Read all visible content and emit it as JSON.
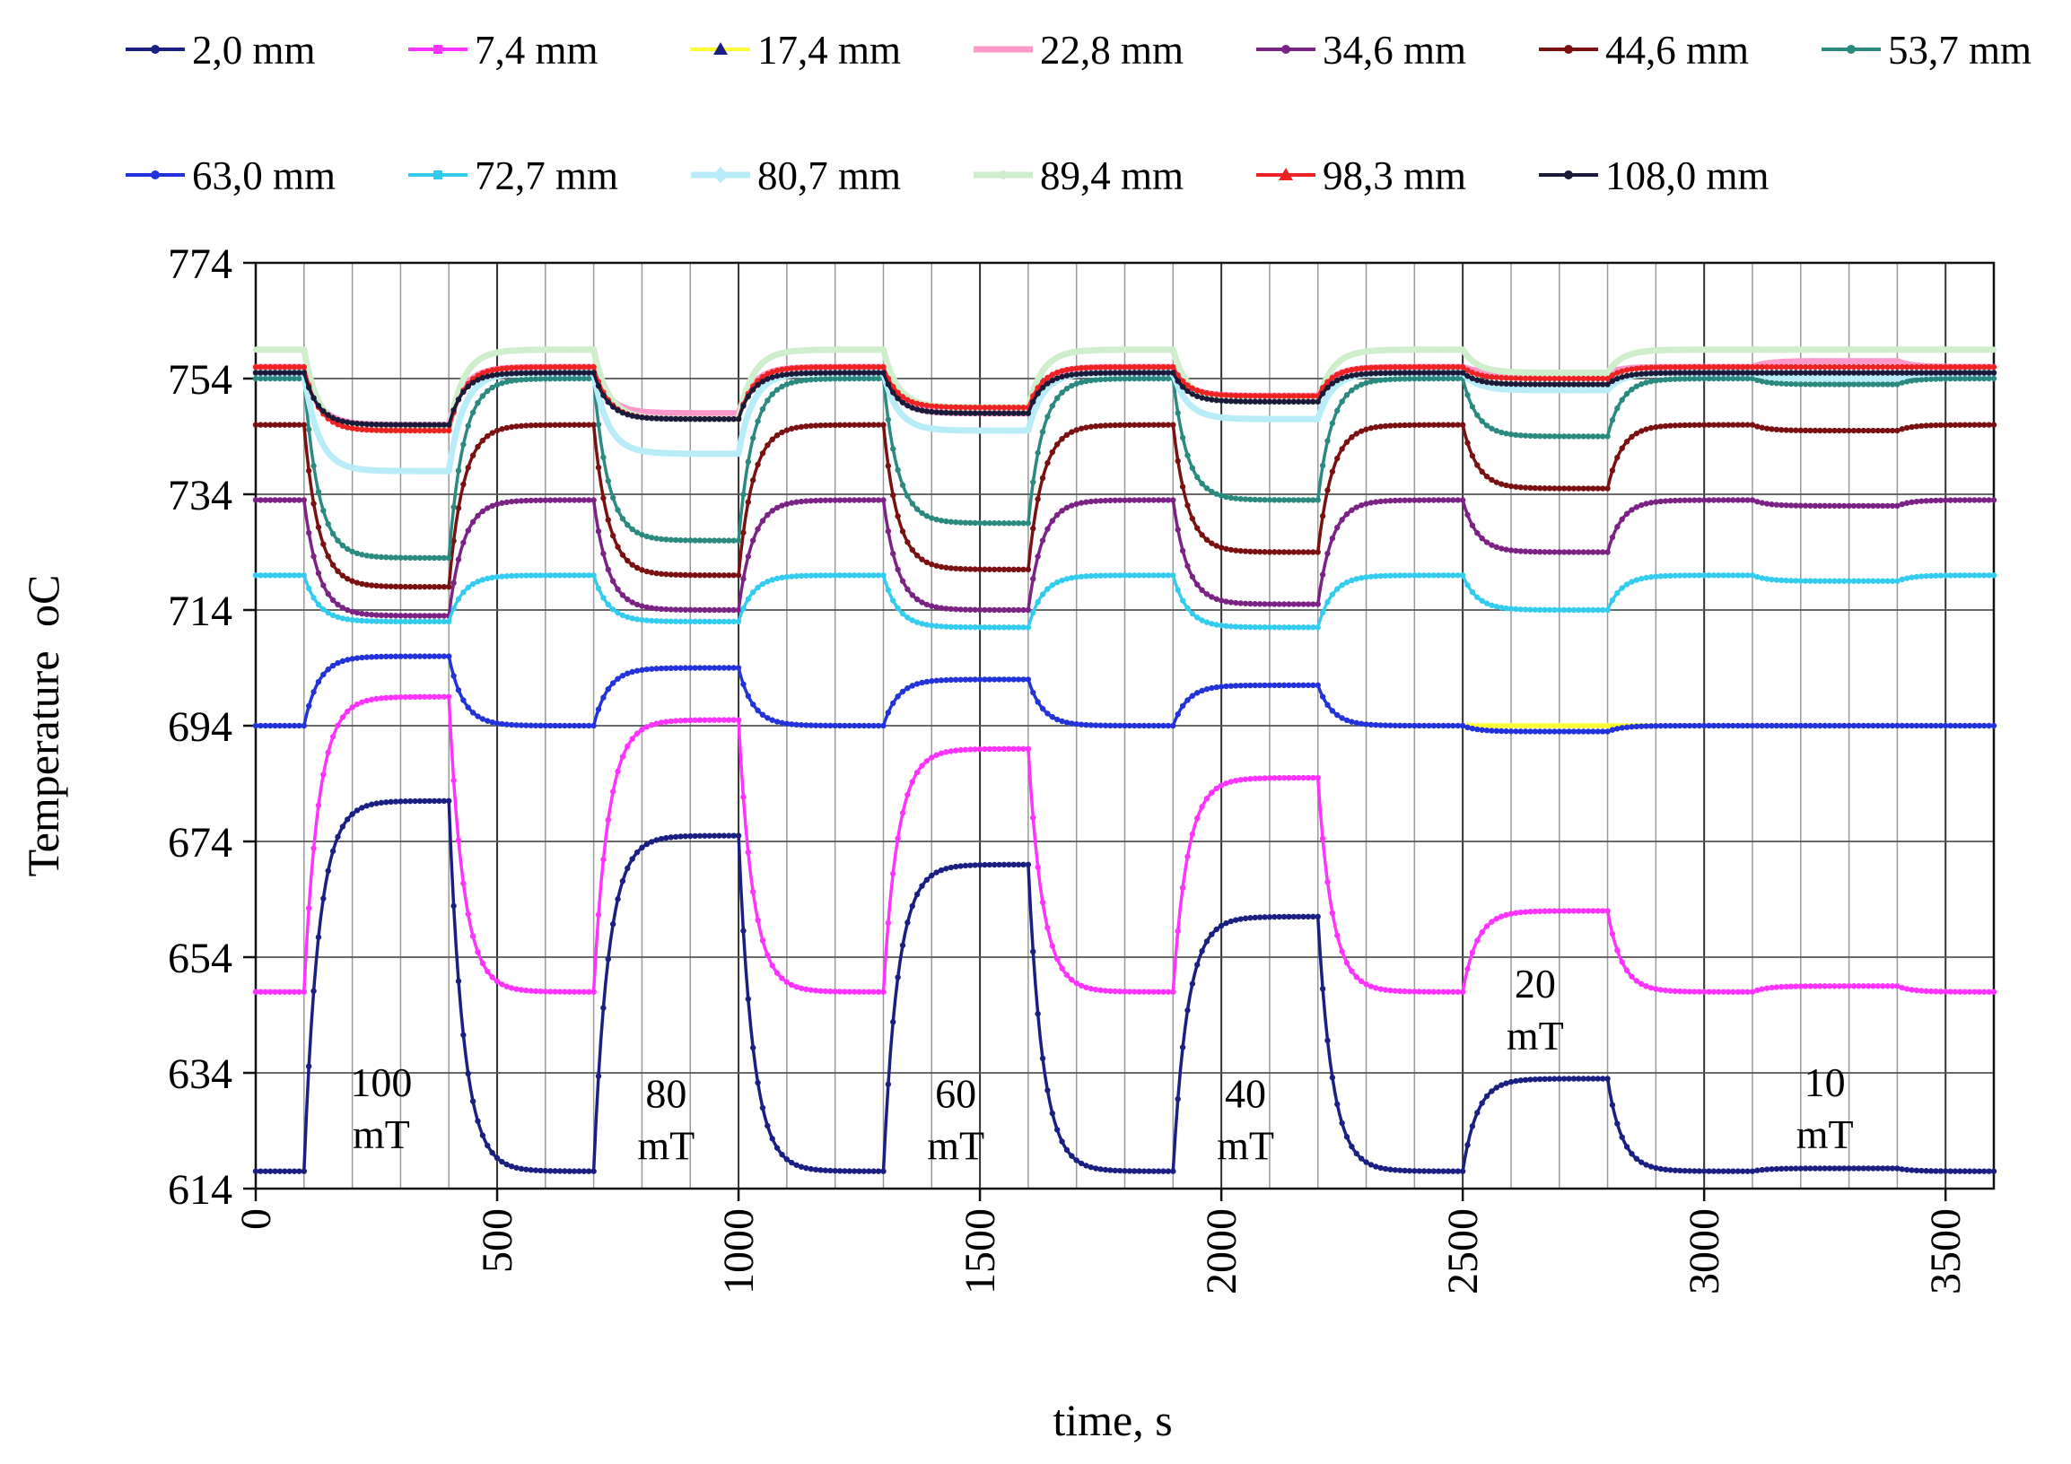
{
  "chart_data": {
    "type": "line",
    "title": "",
    "xlabel": "time,  s",
    "ylabel": "Temperature",
    "ylabel_unit": "oC",
    "xlim": [
      0,
      3600
    ],
    "ylim": [
      614,
      774
    ],
    "x_ticks": [
      0,
      500,
      1000,
      1500,
      2000,
      2500,
      3000,
      3500
    ],
    "y_ticks": [
      614,
      634,
      654,
      674,
      694,
      714,
      734,
      754,
      774
    ],
    "x_minor_step": 100,
    "grid": true,
    "legend_position": "top",
    "field_intervals": [
      [
        100,
        400
      ],
      [
        700,
        1000
      ],
      [
        1300,
        1600
      ],
      [
        1900,
        2200
      ],
      [
        2500,
        2800
      ],
      [
        3100,
        3400
      ]
    ],
    "settle_time_s": 30,
    "series": [
      {
        "name": "2,0 mm",
        "color": "#1a1f82",
        "marker": "dot",
        "base": 617,
        "plateau": [
          681,
          675,
          670,
          661,
          633,
          617.5
        ]
      },
      {
        "name": "7,4 mm",
        "color": "#ff33ff",
        "marker": "square",
        "base": 648,
        "plateau": [
          699,
          695,
          690,
          685,
          662,
          649
        ]
      },
      {
        "name": "17,4 mm",
        "color": "#ffff33",
        "marker": "triangle",
        "base": 694,
        "plateau": [
          706,
          704,
          702,
          701,
          694,
          694
        ]
      },
      {
        "name": "22,8 mm",
        "color": "#ff99cc",
        "marker": "none",
        "base": 756,
        "plateau": [
          746,
          748,
          748,
          751,
          755,
          757
        ]
      },
      {
        "name": "34,6 mm",
        "color": "#7b2385",
        "marker": "dot",
        "base": 733,
        "plateau": [
          713,
          714,
          714,
          715,
          724,
          732
        ]
      },
      {
        "name": "44,6 mm",
        "color": "#7a1010",
        "marker": "dot",
        "base": 746,
        "plateau": [
          718,
          720,
          721,
          724,
          735,
          745
        ]
      },
      {
        "name": "53,7 mm",
        "color": "#2a8a80",
        "marker": "dot",
        "base": 754,
        "plateau": [
          723,
          726,
          729,
          733,
          744,
          753
        ]
      },
      {
        "name": "63,0 mm",
        "color": "#2233dd",
        "marker": "dot",
        "base": 694,
        "plateau": [
          706,
          704,
          702,
          701,
          693,
          694
        ]
      },
      {
        "name": "72,7 mm",
        "color": "#33ccee",
        "marker": "square",
        "base": 720,
        "plateau": [
          712,
          712,
          711,
          711,
          714,
          719
        ]
      },
      {
        "name": "80,7 mm",
        "color": "#b8ecf8",
        "marker": "diamond",
        "base": 755,
        "plateau": [
          738,
          741,
          745,
          747,
          752,
          754
        ]
      },
      {
        "name": "89,4 mm",
        "color": "#cfeecb",
        "marker": "dot",
        "base": 759,
        "plateau": [
          745,
          747,
          749,
          750,
          755,
          759
        ]
      },
      {
        "name": "98,3 mm",
        "color": "#ee2222",
        "marker": "triangle",
        "base": 756,
        "plateau": [
          745,
          747,
          749,
          751,
          754,
          756
        ]
      },
      {
        "name": "108,0 mm",
        "color": "#1a1a3a",
        "marker": "dot",
        "base": 755,
        "plateau": [
          746,
          747,
          748,
          750,
          753,
          755
        ]
      }
    ],
    "annotations": [
      {
        "lines": [
          "100",
          "mT"
        ],
        "x": 260,
        "y": 630
      },
      {
        "lines": [
          "80",
          "mT"
        ],
        "x": 850,
        "y": 628
      },
      {
        "lines": [
          "60",
          "mT"
        ],
        "x": 1450,
        "y": 628
      },
      {
        "lines": [
          "40",
          "mT"
        ],
        "x": 2050,
        "y": 628
      },
      {
        "lines": [
          "20",
          "mT"
        ],
        "x": 2650,
        "y": 647
      },
      {
        "lines": [
          "10",
          "mT"
        ],
        "x": 3250,
        "y": 630
      }
    ]
  }
}
